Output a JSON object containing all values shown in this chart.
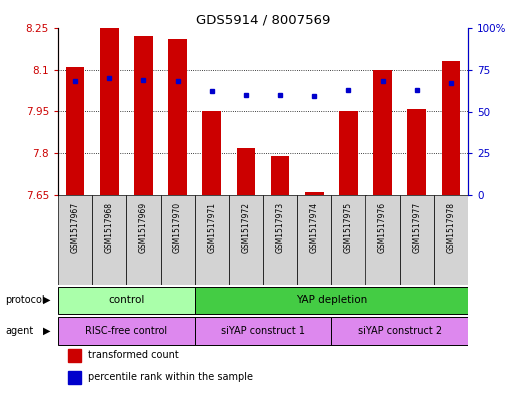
{
  "title": "GDS5914 / 8007569",
  "samples": [
    "GSM1517967",
    "GSM1517968",
    "GSM1517969",
    "GSM1517970",
    "GSM1517971",
    "GSM1517972",
    "GSM1517973",
    "GSM1517974",
    "GSM1517975",
    "GSM1517976",
    "GSM1517977",
    "GSM1517978"
  ],
  "bar_values": [
    8.11,
    8.25,
    8.22,
    8.21,
    7.95,
    7.82,
    7.79,
    7.66,
    7.95,
    8.1,
    7.96,
    8.13
  ],
  "dot_values": [
    68,
    70,
    69,
    68,
    62,
    60,
    60,
    59,
    63,
    68,
    63,
    67
  ],
  "ymin": 7.65,
  "ymax": 8.25,
  "y2min": 0,
  "y2max": 100,
  "yticks": [
    7.65,
    7.8,
    7.95,
    8.1,
    8.25
  ],
  "ytick_labels": [
    "7.65",
    "7.8",
    "7.95",
    "8.1",
    "8.25"
  ],
  "y2ticks": [
    0,
    25,
    50,
    75,
    100
  ],
  "y2tick_labels": [
    "0",
    "25",
    "50",
    "75",
    "100%"
  ],
  "bar_color": "#cc0000",
  "dot_color": "#0000cc",
  "plot_bg": "#ffffff",
  "sample_bg": "#d3d3d3",
  "protocol_control_color": "#aaffaa",
  "protocol_yap_color": "#44cc44",
  "agent_color": "#dd88ee",
  "legend_items": [
    {
      "label": "transformed count",
      "color": "#cc0000"
    },
    {
      "label": "percentile rank within the sample",
      "color": "#0000cc"
    }
  ],
  "figsize": [
    5.13,
    3.93
  ],
  "dpi": 100
}
